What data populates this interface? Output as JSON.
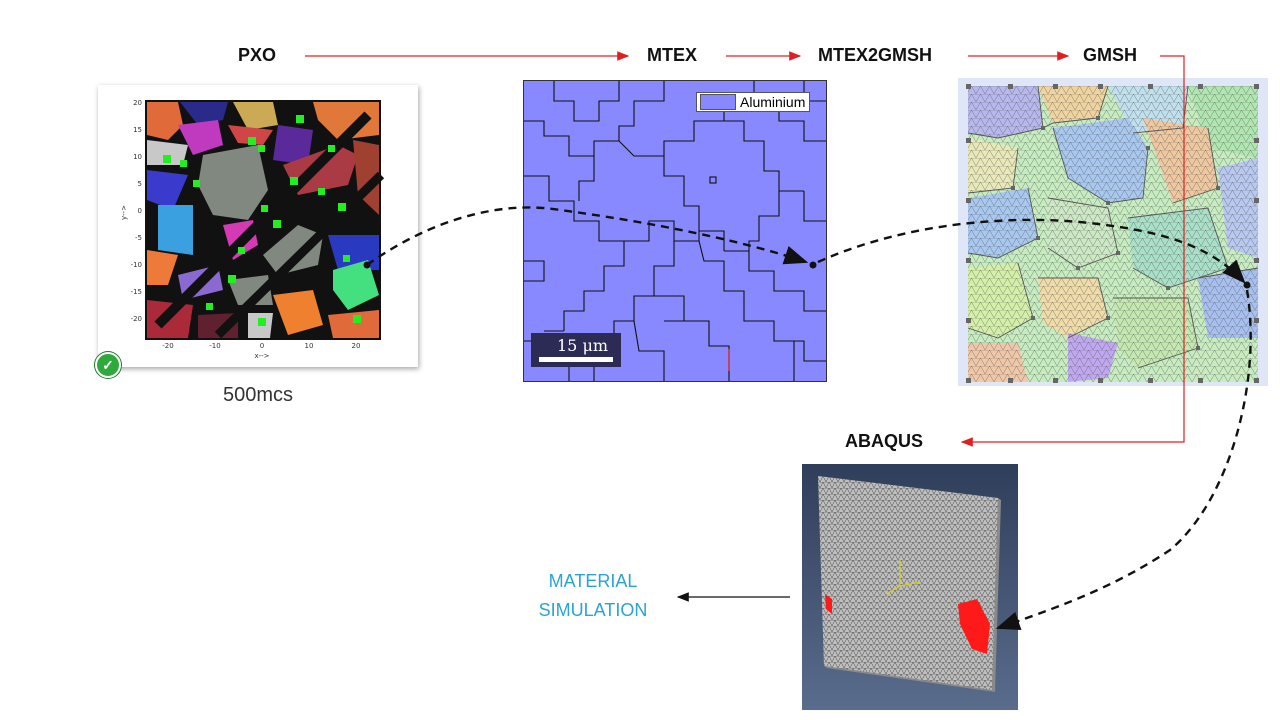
{
  "pipeline": {
    "pxo": "PXO",
    "mtex": "MTEX",
    "mtex2gmsh": "MTEX2GMSH",
    "gmsh": "GMSH",
    "abaqus": "ABAQUS"
  },
  "pxo_panel": {
    "caption": "500mcs",
    "y_ticks": [
      "20",
      "15",
      "10",
      "5",
      "0",
      "-5",
      "-10",
      "-15",
      "-20"
    ],
    "x_ticks": [
      "-20",
      "-10",
      "0",
      "10",
      "20"
    ],
    "x_axis_label": "x-->",
    "y_axis_label": "y-->",
    "check_icon": "check-circle-icon"
  },
  "mtex_panel": {
    "legend_label": "Aluminium",
    "scale_label": "15 μm",
    "fill_color": "#8888ff"
  },
  "abaqus_panel": {
    "background": "#3d4f70"
  },
  "output": {
    "line1": "MATERIAL",
    "line2": "SIMULATION"
  },
  "colors": {
    "red_arrow": "#e02020",
    "dashed_arrow": "#111111",
    "sim_text": "#2aa3d6"
  }
}
